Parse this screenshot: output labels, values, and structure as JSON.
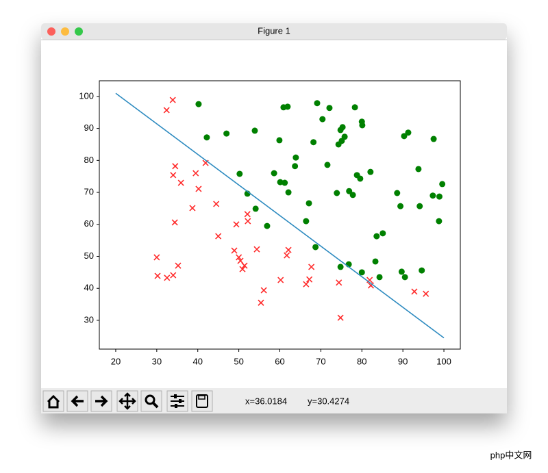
{
  "window": {
    "title": "Figure 1"
  },
  "chart_data": {
    "type": "scatter",
    "xlim": [
      16,
      104
    ],
    "ylim": [
      21,
      104.9
    ],
    "xticks": [
      20,
      30,
      40,
      50,
      60,
      70,
      80,
      90,
      100
    ],
    "yticks": [
      30,
      40,
      50,
      60,
      70,
      80,
      90,
      100
    ],
    "series": [
      {
        "type": "scatter",
        "marker": "x",
        "color": "#ff2a2a",
        "x": [
          33.9,
          32.4,
          34.5,
          41.9,
          34.0,
          39.5,
          35.9,
          40.2,
          44.5,
          38.7,
          52.1,
          52.2,
          49.4,
          34.4,
          45.0,
          48.9,
          54.4,
          62.1,
          61.7,
          30.0,
          50.0,
          50.4,
          51.4,
          50.9,
          67.7,
          35.2,
          30.2,
          34.0,
          32.5,
          60.2,
          67.2,
          66.4,
          74.4,
          81.9,
          82.2,
          56.1,
          92.8,
          95.6,
          55.4,
          74.8
        ],
        "values": [
          98.9,
          95.7,
          78.2,
          79.2,
          75.4,
          76.0,
          73.0,
          71.1,
          66.4,
          65.1,
          63.2,
          61.0,
          60.0,
          60.6,
          56.3,
          51.8,
          52.2,
          52.0,
          50.3,
          49.7,
          49.7,
          48.6,
          47.1,
          46.0,
          46.7,
          47.1,
          43.9,
          44.1,
          43.3,
          42.6,
          42.8,
          41.3,
          41.8,
          42.6,
          40.9,
          39.4,
          39.0,
          38.3,
          35.5,
          30.8
        ]
      },
      {
        "type": "scatter",
        "marker": "o",
        "color": "#008000",
        "x": [
          40.2,
          60.9,
          61.9,
          69.1,
          72.1,
          78.3,
          70.4,
          80.0,
          80.1,
          53.9,
          75.3,
          74.8,
          47.0,
          91.3,
          90.3,
          42.2,
          75.8,
          75.1,
          74.3,
          97.5,
          59.9,
          68.2,
          63.9,
          63.7,
          71.6,
          93.8,
          50.2,
          58.6,
          82.1,
          78.8,
          79.6,
          60.1,
          61.2,
          99.6,
          52.1,
          62.1,
          76.9,
          77.8,
          73.9,
          88.6,
          97.3,
          98.9,
          67.1,
          54.1,
          89.4,
          94.1,
          98.8,
          66.4,
          56.9,
          85.1,
          83.6,
          68.7,
          83.3,
          76.8,
          74.8,
          94.6,
          89.7,
          80.0,
          84.3,
          90.5
        ],
        "values": [
          97.6,
          96.6,
          96.8,
          97.9,
          96.4,
          96.6,
          92.9,
          92.1,
          91.0,
          89.3,
          90.4,
          89.5,
          88.4,
          88.7,
          87.6,
          87.2,
          87.4,
          86.1,
          85.0,
          86.7,
          86.3,
          85.7,
          80.9,
          78.2,
          78.6,
          77.3,
          75.8,
          76.0,
          76.4,
          75.4,
          74.3,
          73.2,
          73.0,
          72.6,
          69.6,
          70.0,
          70.4,
          69.2,
          69.8,
          69.8,
          69.0,
          68.7,
          66.6,
          64.9,
          65.7,
          65.7,
          61.0,
          61.0,
          59.5,
          57.2,
          56.3,
          52.9,
          48.4,
          47.5,
          46.7,
          45.6,
          45.2,
          45.0,
          43.5,
          43.5
        ]
      },
      {
        "type": "line",
        "color": "#2e8bc0",
        "x": [
          20,
          100
        ],
        "values": [
          101,
          24.5
        ]
      }
    ]
  },
  "toolbar": {
    "x_readout": "x=36.0184",
    "y_readout": "y=30.4274"
  },
  "watermark": "php中文网"
}
